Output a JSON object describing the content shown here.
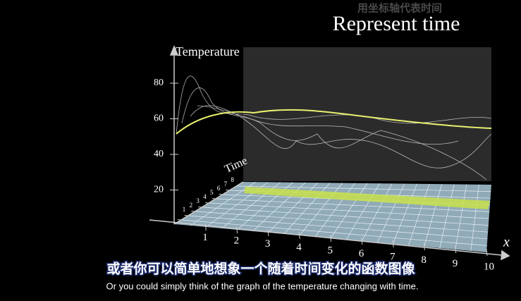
{
  "header": {
    "caption_zh": "用坐标轴代表时间",
    "caption_en": "Represent time"
  },
  "axes": {
    "temperature_label": "Temperature",
    "temperature_ticks": [
      80,
      60,
      40,
      20
    ],
    "time_label": "Time",
    "time_ticks": [
      1,
      2,
      3,
      4,
      5,
      6,
      7,
      8
    ],
    "x_label": "x",
    "x_ticks": [
      1,
      2,
      3,
      4,
      5,
      6,
      7,
      8,
      9,
      10
    ]
  },
  "subtitles": {
    "zh": "或者你可以简单地想象一个随着时间变化的函数图像",
    "en": "Or you could simply think of the graph of the temperature changing with time."
  }
}
